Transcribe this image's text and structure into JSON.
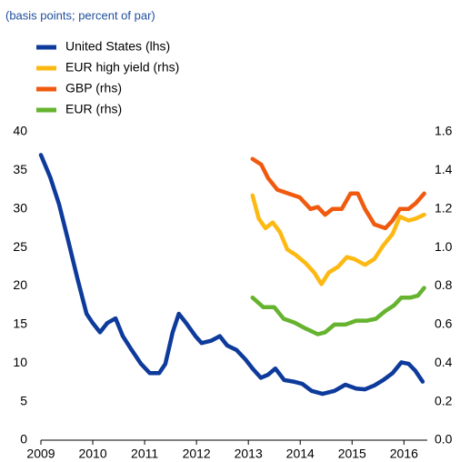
{
  "chart_data": {
    "type": "line",
    "subtitle": "(basis points; percent of par)",
    "xlim": [
      2009,
      2016.45
    ],
    "xticks": [
      2009,
      2010,
      2011,
      2012,
      2013,
      2014,
      2015,
      2016
    ],
    "ylim": [
      0,
      40
    ],
    "yticks": [
      0,
      5,
      10,
      15,
      20,
      25,
      30,
      35,
      40
    ],
    "y2lim": [
      0,
      1.6
    ],
    "y2ticks": [
      {
        "value": 0,
        "label": "0.0"
      },
      0.2,
      0.4,
      0.6,
      0.8,
      {
        "value": 1,
        "label": "1.0"
      },
      1.2,
      1.4,
      1.6
    ],
    "series": [
      {
        "name": "United States (lhs)",
        "color": "#0d3a9b",
        "axis": "y",
        "x": [
          2009.0,
          2009.18,
          2009.35,
          2009.53,
          2009.7,
          2009.88,
          2010.0,
          2010.14,
          2010.28,
          2010.44,
          2010.58,
          2010.75,
          2010.93,
          2011.1,
          2011.28,
          2011.4,
          2011.54,
          2011.66,
          2011.8,
          2011.98,
          2012.1,
          2012.28,
          2012.45,
          2012.59,
          2012.77,
          2012.94,
          2013.08,
          2013.24,
          2013.38,
          2013.52,
          2013.69,
          2013.87,
          2014.04,
          2014.22,
          2014.43,
          2014.66,
          2014.87,
          2015.08,
          2015.25,
          2015.43,
          2015.6,
          2015.78,
          2015.95,
          2016.09,
          2016.22,
          2016.36
        ],
        "values": [
          37.0,
          34.1,
          30.6,
          25.8,
          21.1,
          16.4,
          15.2,
          14.0,
          15.2,
          15.8,
          13.5,
          11.7,
          9.9,
          8.7,
          8.7,
          9.9,
          14.0,
          16.4,
          15.2,
          13.5,
          12.6,
          12.9,
          13.5,
          12.3,
          11.7,
          10.5,
          9.3,
          8.1,
          8.5,
          9.3,
          7.8,
          7.6,
          7.3,
          6.4,
          6.0,
          6.4,
          7.2,
          6.7,
          6.6,
          7.1,
          7.8,
          8.7,
          10.1,
          9.9,
          9.0,
          7.6
        ]
      },
      {
        "name": "EUR high yield (rhs)",
        "color": "#fdb913",
        "axis": "y2",
        "x": [
          2013.08,
          2013.2,
          2013.33,
          2013.47,
          2013.61,
          2013.75,
          2013.92,
          2014.1,
          2014.27,
          2014.41,
          2014.55,
          2014.73,
          2014.9,
          2015.04,
          2015.25,
          2015.43,
          2015.6,
          2015.78,
          2015.92,
          2016.09,
          2016.23,
          2016.39
        ],
        "values": [
          1.27,
          1.15,
          1.1,
          1.13,
          1.08,
          0.99,
          0.96,
          0.92,
          0.87,
          0.81,
          0.87,
          0.9,
          0.95,
          0.94,
          0.91,
          0.94,
          1.01,
          1.07,
          1.16,
          1.14,
          1.15,
          1.17
        ]
      },
      {
        "name": "GBP (rhs)",
        "color": "#f05a0f",
        "axis": "y2",
        "x": [
          2013.08,
          2013.25,
          2013.38,
          2013.56,
          2013.77,
          2013.99,
          2014.2,
          2014.34,
          2014.48,
          2014.62,
          2014.8,
          2014.97,
          2015.11,
          2015.25,
          2015.43,
          2015.64,
          2015.78,
          2015.92,
          2016.09,
          2016.23,
          2016.39
        ],
        "values": [
          1.46,
          1.43,
          1.36,
          1.3,
          1.28,
          1.26,
          1.2,
          1.21,
          1.17,
          1.2,
          1.2,
          1.28,
          1.28,
          1.2,
          1.12,
          1.1,
          1.14,
          1.2,
          1.2,
          1.23,
          1.28
        ]
      },
      {
        "name": "EUR (rhs)",
        "color": "#65b32e",
        "axis": "y2",
        "x": [
          2013.08,
          2013.29,
          2013.5,
          2013.68,
          2013.89,
          2014.1,
          2014.34,
          2014.48,
          2014.66,
          2014.87,
          2015.08,
          2015.29,
          2015.46,
          2015.64,
          2015.81,
          2015.95,
          2016.13,
          2016.27,
          2016.39
        ],
        "values": [
          0.74,
          0.69,
          0.69,
          0.63,
          0.61,
          0.58,
          0.55,
          0.56,
          0.6,
          0.6,
          0.62,
          0.62,
          0.63,
          0.67,
          0.7,
          0.74,
          0.74,
          0.75,
          0.79
        ]
      }
    ]
  }
}
